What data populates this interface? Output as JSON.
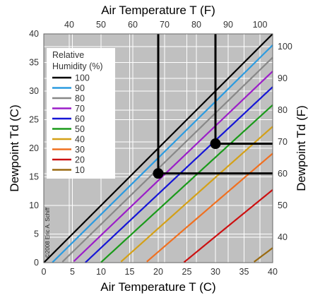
{
  "chart_data": {
    "type": "line",
    "title": "",
    "xlabel_bottom": "Air Temperature  T (C)",
    "xlabel_top": "Air Temperature    T (F)",
    "ylabel_left": "Dewpoint  Td (C)",
    "ylabel_right": "Dewpoint  Td (F)",
    "xlim": [
      0,
      40
    ],
    "ylim": [
      0,
      40
    ],
    "x_ticks": [
      0,
      5,
      10,
      15,
      20,
      25,
      30,
      35,
      40
    ],
    "y_ticks": [
      0,
      5,
      10,
      15,
      20,
      25,
      30,
      35,
      40
    ],
    "top_ticks_f": [
      40,
      50,
      60,
      70,
      80,
      90,
      100
    ],
    "right_ticks_f": [
      40,
      50,
      60,
      70,
      80,
      90,
      100
    ],
    "grid": true,
    "background_color": "#c0c0c0",
    "grid_color": "#ffffff",
    "legend": {
      "title_line1": "Relative",
      "title_line2": "Humidity (%)",
      "position": "top-left"
    },
    "series": [
      {
        "name": "100",
        "rh": 100,
        "color": "#000000"
      },
      {
        "name": "90",
        "rh": 90,
        "color": "#2b9be0"
      },
      {
        "name": "80",
        "rh": 80,
        "color": "#888888"
      },
      {
        "name": "70",
        "rh": 70,
        "color": "#9b1ec8"
      },
      {
        "name": "60",
        "rh": 60,
        "color": "#1515d6"
      },
      {
        "name": "50",
        "rh": 50,
        "color": "#1a9a1a"
      },
      {
        "name": "40",
        "rh": 40,
        "color": "#d4a017"
      },
      {
        "name": "30",
        "rh": 30,
        "color": "#f07020"
      },
      {
        "name": "20",
        "rh": 20,
        "color": "#cc1010"
      },
      {
        "name": "10",
        "rh": 10,
        "color": "#9a6a10"
      }
    ],
    "annotations": {
      "points": [
        {
          "x": 20,
          "y": 15.6
        },
        {
          "x": 30,
          "y": 20.8
        }
      ],
      "copyright": "©2008 Eric A. Schiff"
    }
  }
}
